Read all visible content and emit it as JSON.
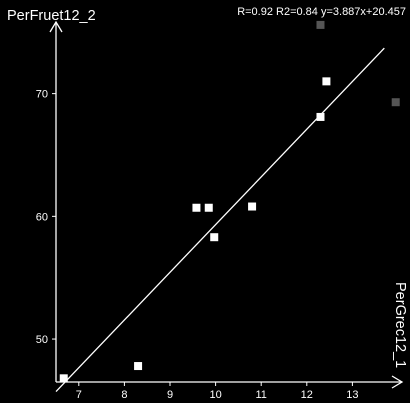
{
  "chart_data": {
    "type": "scatter",
    "title": "",
    "xlabel": "PerGrec12_1",
    "ylabel": "PerFruet12_2",
    "stats_text": "R=0.92 R2=0.84  y=3.887x+20.457",
    "xlim": [
      6.5,
      14
    ],
    "ylim": [
      46.5,
      76
    ],
    "xticks": [
      7,
      8,
      9,
      10,
      11,
      12,
      13
    ],
    "yticks": [
      50,
      60,
      70
    ],
    "regression": {
      "slope": 3.887,
      "intercept": 20.457
    },
    "points": [
      {
        "x": 6.67,
        "y": 46.8,
        "style": "normal"
      },
      {
        "x": 8.3,
        "y": 47.8,
        "style": "normal"
      },
      {
        "x": 9.58,
        "y": 60.7,
        "style": "normal"
      },
      {
        "x": 9.85,
        "y": 60.7,
        "style": "normal"
      },
      {
        "x": 9.97,
        "y": 58.3,
        "style": "normal"
      },
      {
        "x": 10.8,
        "y": 60.8,
        "style": "normal"
      },
      {
        "x": 12.3,
        "y": 68.1,
        "style": "normal"
      },
      {
        "x": 12.43,
        "y": 71.0,
        "style": "normal"
      },
      {
        "x": 12.3,
        "y": 75.6,
        "style": "dimmed"
      },
      {
        "x": 13.95,
        "y": 69.3,
        "style": "dimmed"
      }
    ],
    "colors": {
      "background": "#000000",
      "axis": "#ffffff",
      "point": "#ffffff",
      "dimmed_point": "#555555",
      "fit_line": "#ffffff"
    },
    "grid": false
  }
}
